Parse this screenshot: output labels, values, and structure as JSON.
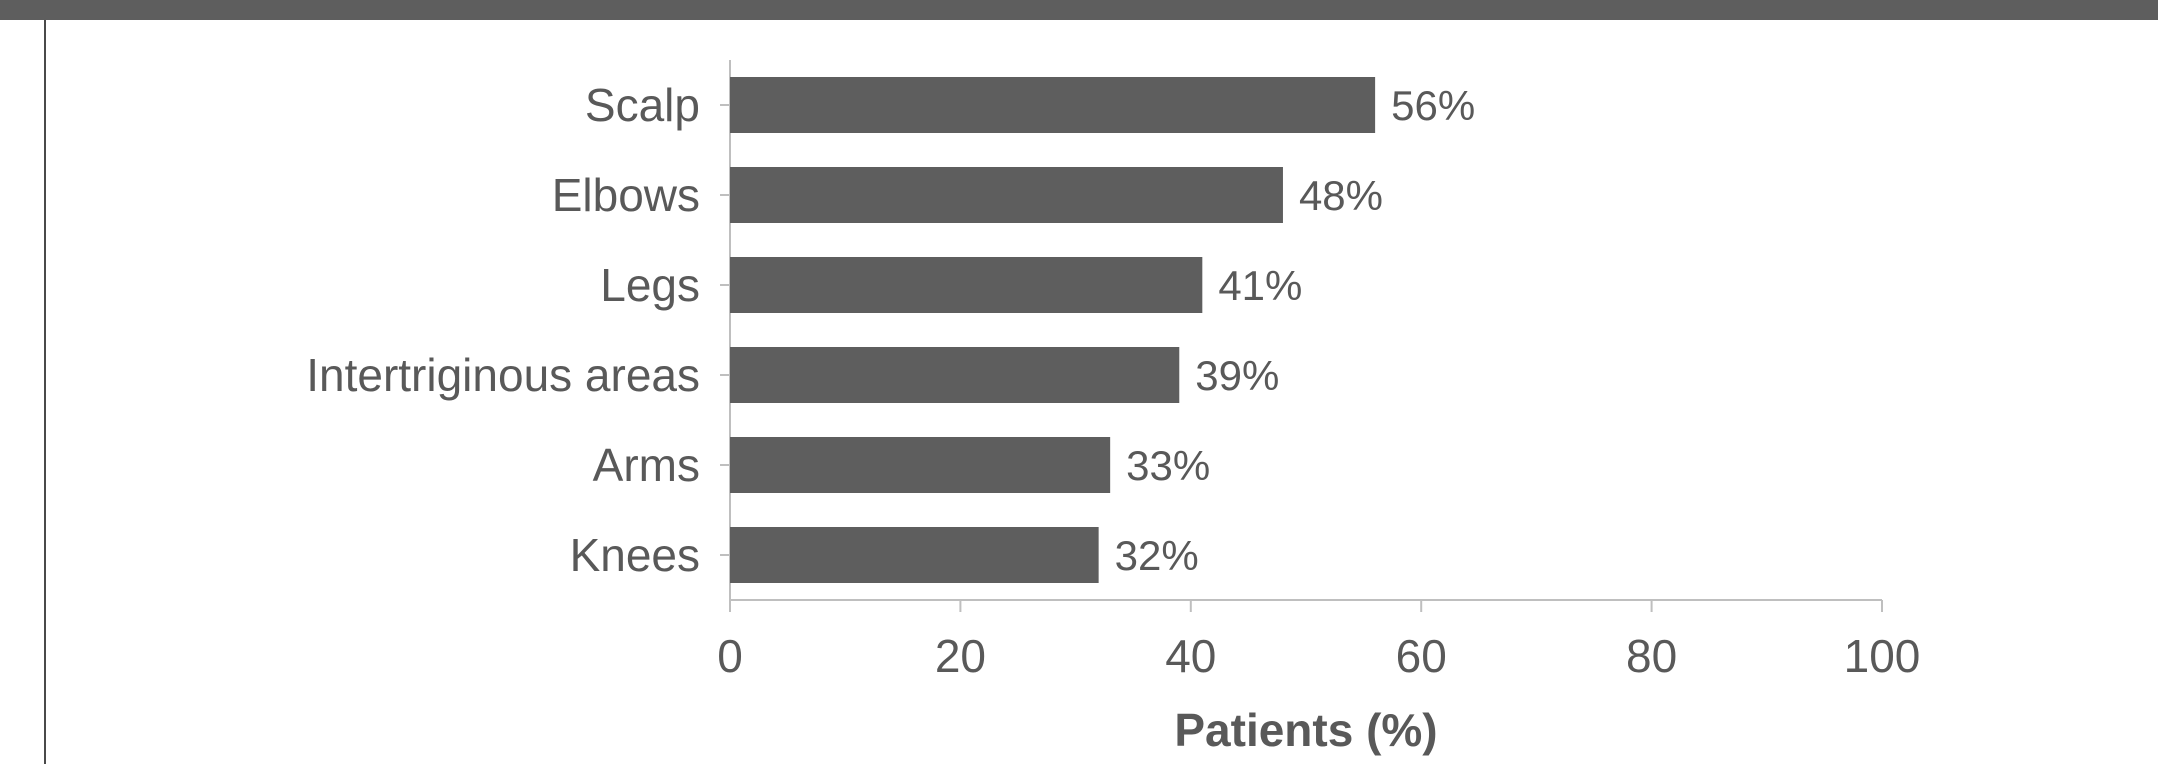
{
  "chart_data": {
    "type": "bar",
    "orientation": "horizontal",
    "categories": [
      "Scalp",
      "Elbows",
      "Legs",
      "Intertriginous areas",
      "Arms",
      "Knees"
    ],
    "values": [
      56,
      48,
      41,
      39,
      33,
      32
    ],
    "value_labels": [
      "56%",
      "48%",
      "41%",
      "39%",
      "33%",
      "32%"
    ],
    "xlabel": "Patients (%)",
    "ylabel": "",
    "xlim": [
      0,
      100
    ],
    "xticks": [
      0,
      20,
      40,
      60,
      80,
      100
    ],
    "grid": false,
    "bar_color": "#5e5e5e"
  },
  "colors": {
    "bar": "#5e5e5e",
    "text": "#595959",
    "axis": "#bfbfbf",
    "band": "#5e5e5e"
  }
}
